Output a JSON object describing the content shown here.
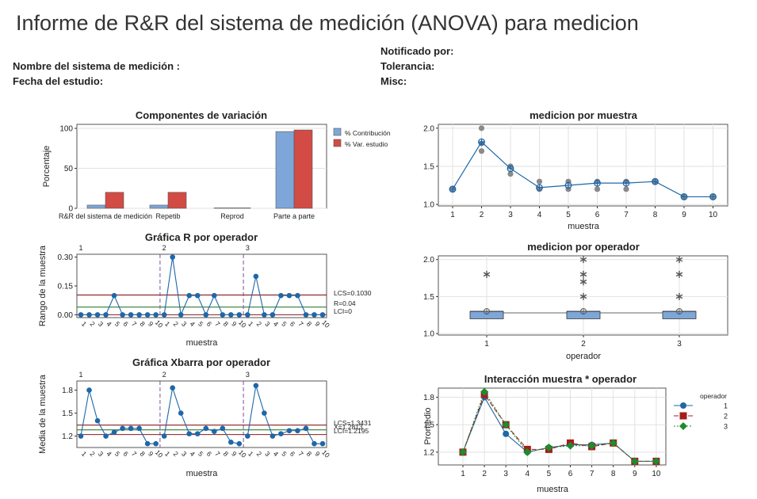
{
  "report": {
    "title": "Informe de R&R del sistema de medición  (ANOVA) para medicion",
    "system_name_label": "Nombre del sistema de medición :",
    "study_date_label": "Fecha del estudio:",
    "reported_by_label": "Notificado por:",
    "tolerance_label": "Tolerancia:",
    "misc_label": "Misc:"
  },
  "colors": {
    "contribution": "#7EA6D8",
    "study_var": "#D24B45",
    "series_blue": "#1F67A8",
    "point_gray": "#8A8A8A",
    "ucl": "#8B1A1A",
    "center": "#2E7D32",
    "op2_red": "#A51C1C",
    "op3_green": "#1E8B2E",
    "divider": "#7B4F9E",
    "box_fill": "#7EA6D8"
  },
  "chart_data": [
    {
      "id": "components",
      "type": "bar",
      "title": "Componentes de variación",
      "ylabel": "Porcentaje",
      "categories": [
        "R&R del sistema de medición",
        "Repetib",
        "Reprod",
        "Parte a parte"
      ],
      "series": [
        {
          "name": "% Contribución",
          "values": [
            4,
            4,
            0.5,
            96
          ]
        },
        {
          "name": "% Var. estudio",
          "values": [
            20,
            20,
            0.5,
            98
          ]
        }
      ],
      "yticks": [
        0,
        50,
        100
      ],
      "ylim": [
        0,
        105
      ],
      "legend": "right"
    },
    {
      "id": "by_part",
      "type": "scatter",
      "title": "medicion por muestra",
      "xlabel": "muestra",
      "x": [
        1,
        2,
        3,
        4,
        5,
        6,
        7,
        8,
        9,
        10
      ],
      "means": [
        1.2,
        1.82,
        1.47,
        1.22,
        1.25,
        1.28,
        1.28,
        1.3,
        1.1,
        1.1
      ],
      "points": [
        [
          1,
          1.2
        ],
        [
          2,
          2.0
        ],
        [
          2,
          1.8
        ],
        [
          2,
          1.7
        ],
        [
          3,
          1.5
        ],
        [
          3,
          1.4
        ],
        [
          4,
          1.3
        ],
        [
          4,
          1.2
        ],
        [
          5,
          1.3
        ],
        [
          5,
          1.2
        ],
        [
          6,
          1.3
        ],
        [
          6,
          1.2
        ],
        [
          7,
          1.3
        ],
        [
          7,
          1.2
        ],
        [
          8,
          1.3
        ],
        [
          9,
          1.1
        ],
        [
          10,
          1.1
        ]
      ],
      "yticks": [
        "1.0",
        "1.5",
        "2.0"
      ],
      "ylim": [
        0.98,
        2.05
      ]
    },
    {
      "id": "r_chart",
      "type": "line",
      "title": "Gráfica R por operador",
      "ylabel": "Rango de la muestra",
      "xlabel": "muestra",
      "operators": [
        "1",
        "2",
        "3"
      ],
      "values": [
        [
          0,
          0,
          0,
          0,
          0.1,
          0,
          0,
          0,
          0,
          0
        ],
        [
          0,
          0.3,
          0,
          0.1,
          0.1,
          0,
          0.1,
          0,
          0,
          0
        ],
        [
          0,
          0.2,
          0,
          0,
          0.1,
          0.1,
          0.1,
          0,
          0,
          0
        ]
      ],
      "limits": {
        "ucl": 0.103,
        "center": 0.04,
        "lcl": 0
      },
      "limit_labels": [
        "LCS=0.1030",
        "R=0.04",
        "LCI=0"
      ],
      "yticks": [
        "0.00",
        "0.15",
        "0.30"
      ],
      "ylim": [
        -0.015,
        0.315
      ]
    },
    {
      "id": "xbar_chart",
      "type": "line",
      "title": "Gráfica Xbarra por operador",
      "ylabel": "Media de la muestra",
      "xlabel": "muestra",
      "operators": [
        "1",
        "2",
        "3"
      ],
      "values": [
        [
          1.2,
          1.8,
          1.4,
          1.2,
          1.25,
          1.3,
          1.3,
          1.3,
          1.1,
          1.1
        ],
        [
          1.2,
          1.83,
          1.5,
          1.23,
          1.23,
          1.3,
          1.26,
          1.3,
          1.12,
          1.1
        ],
        [
          1.2,
          1.86,
          1.5,
          1.2,
          1.23,
          1.27,
          1.27,
          1.3,
          1.1,
          1.1
        ]
      ],
      "limits": {
        "ucl": 1.3431,
        "center": 1.2813,
        "lcl": 1.2195
      },
      "limit_labels": [
        "LCS=1.3431",
        "X=1.2813",
        "LCI=1.2195"
      ],
      "yticks": [
        "1.2",
        "1.5",
        "1.8"
      ],
      "ylim": [
        1.05,
        1.92
      ]
    },
    {
      "id": "by_operator",
      "type": "box",
      "title": "medicion por operador",
      "xlabel": "operador",
      "categories": [
        "1",
        "2",
        "3"
      ],
      "boxes": [
        {
          "q1": 1.2,
          "median": 1.3,
          "q3": 1.3,
          "mean": 1.28,
          "outliers": [
            1.8
          ]
        },
        {
          "q1": 1.2,
          "median": 1.3,
          "q3": 1.3,
          "mean": 1.28,
          "outliers": [
            2.0,
            1.8,
            1.7,
            1.5
          ]
        },
        {
          "q1": 1.2,
          "median": 1.3,
          "q3": 1.3,
          "mean": 1.28,
          "outliers": [
            2.0,
            1.8,
            1.5
          ]
        }
      ],
      "yticks": [
        "1.0",
        "1.5",
        "2.0"
      ],
      "ylim": [
        0.98,
        2.05
      ]
    },
    {
      "id": "interaction",
      "type": "line",
      "title": "Interacción muestra * operador",
      "ylabel": "Promedio",
      "xlabel": "muestra",
      "legend_title": "operador",
      "x": [
        1,
        2,
        3,
        4,
        5,
        6,
        7,
        8,
        9,
        10
      ],
      "series": [
        {
          "name": "1",
          "values": [
            1.2,
            1.8,
            1.4,
            1.2,
            1.25,
            1.28,
            1.28,
            1.3,
            1.1,
            1.1
          ]
        },
        {
          "name": "2",
          "values": [
            1.2,
            1.83,
            1.5,
            1.23,
            1.23,
            1.3,
            1.26,
            1.3,
            1.1,
            1.1
          ]
        },
        {
          "name": "3",
          "values": [
            1.2,
            1.86,
            1.5,
            1.2,
            1.25,
            1.27,
            1.27,
            1.3,
            1.1,
            1.1
          ]
        }
      ],
      "yticks": [
        "1.2",
        "1.5",
        "1.8"
      ],
      "ylim": [
        1.06,
        1.9
      ]
    }
  ]
}
